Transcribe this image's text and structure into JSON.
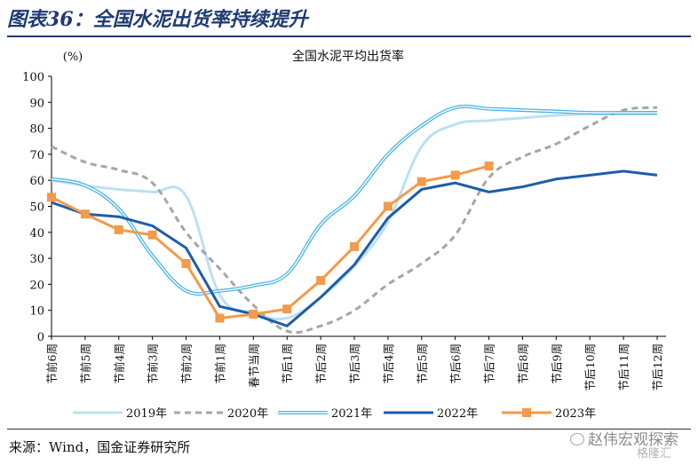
{
  "figure_title": "图表36：全国水泥出货率持续提升",
  "source": "来源：Wind，国金证券研究所",
  "watermark": "赵伟宏观探索",
  "watermark2": "格隆汇",
  "chart_data": {
    "type": "line",
    "title": "全国水泥平均出货率",
    "ylabel": "(%)",
    "xlabel": "",
    "ylim": [
      0,
      100
    ],
    "yticks": [
      0,
      10,
      20,
      30,
      40,
      50,
      60,
      70,
      80,
      90,
      100
    ],
    "grid": false,
    "legend_position": "bottom",
    "categories": [
      "节前6周",
      "节前5周",
      "节前4周",
      "节前3周",
      "节前2周",
      "节前1周",
      "春节当周",
      "节后1周",
      "节后2周",
      "节后3周",
      "节后4周",
      "节后5周",
      "节后6周",
      "节后7周",
      "节后8周",
      "节后9周",
      "节后10周",
      "节后11周",
      "节后12周"
    ],
    "series": [
      {
        "name": "2019年",
        "color": "#bde0f2",
        "style": "solid-light",
        "values": [
          60,
          58,
          56.5,
          55.5,
          54,
          16,
          9,
          7,
          15,
          27,
          44,
          73,
          81.5,
          83,
          84,
          85,
          85.5,
          85.5,
          85.5
        ]
      },
      {
        "name": "2020年",
        "color": "#a6a6a6",
        "style": "dashed",
        "values": [
          73,
          67,
          64,
          59,
          40,
          26,
          12,
          2,
          4,
          10,
          20,
          28,
          39,
          61,
          69,
          74,
          81,
          87,
          88
        ]
      },
      {
        "name": "2021年",
        "color": "#4bb3e6",
        "style": "double",
        "values": [
          60.5,
          58,
          49,
          31,
          17.5,
          17.5,
          19.5,
          24,
          43,
          54,
          70,
          81,
          88,
          87.5,
          87,
          86.5,
          86,
          86,
          86
        ]
      },
      {
        "name": "2022年",
        "color": "#1c5ea8",
        "style": "solid-thick",
        "values": [
          51.5,
          47,
          46,
          42.5,
          34,
          11.5,
          8.5,
          4,
          15,
          27.5,
          45.5,
          56.5,
          59,
          55.5,
          57.5,
          60.5,
          62,
          63.5,
          62
        ]
      },
      {
        "name": "2023年",
        "color": "#f39a4c",
        "style": "solid-markers",
        "values": [
          53.5,
          47,
          41,
          39,
          28,
          7,
          8.5,
          10.5,
          21.5,
          34.5,
          50,
          59.5,
          62,
          65.5,
          null,
          null,
          null,
          null,
          null
        ]
      }
    ]
  }
}
